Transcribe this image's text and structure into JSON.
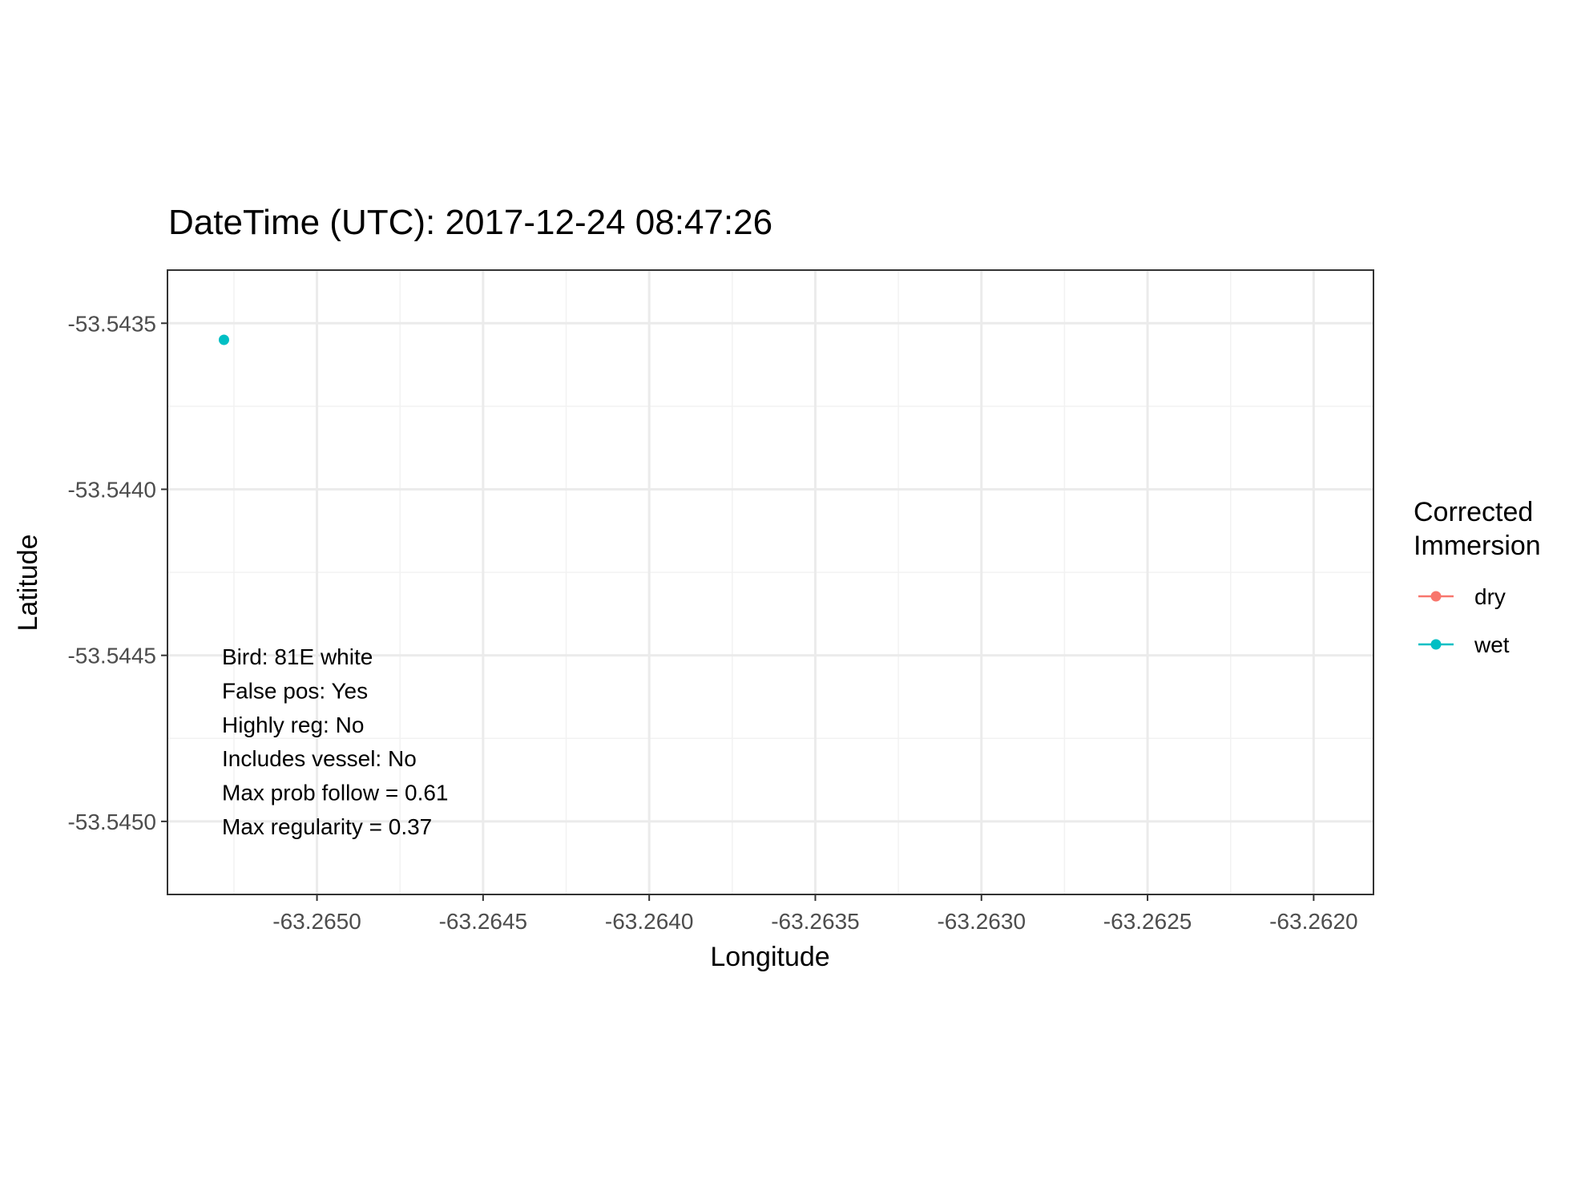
{
  "chart_data": {
    "type": "scatter",
    "title": "DateTime (UTC): 2017-12-24 08:47:26",
    "xlabel": "Longitude",
    "ylabel": "Latitude",
    "xlim": [
      -63.26545,
      -63.26182
    ],
    "ylim": [
      -53.54522,
      -53.54334
    ],
    "xticks": [
      -63.265,
      -63.2645,
      -63.264,
      -63.2635,
      -63.263,
      -63.2625,
      -63.262
    ],
    "xtick_labels": [
      "-63.2650",
      "-63.2645",
      "-63.2640",
      "-63.2635",
      "-63.2630",
      "-63.2625",
      "-63.2620"
    ],
    "yticks": [
      -53.5435,
      -53.544,
      -53.5445,
      -53.545
    ],
    "ytick_labels": [
      "-53.5435",
      "-53.5440",
      "-53.5445",
      "-53.5450"
    ],
    "grid": true,
    "legend": {
      "title_lines": [
        "Corrected",
        "Immersion"
      ],
      "placement": "right",
      "entries": [
        {
          "label": "dry",
          "color": "#F8766D"
        },
        {
          "label": "wet",
          "color": "#00BFC4"
        }
      ]
    },
    "points": [
      {
        "x": -63.26528,
        "y": -53.54355,
        "series": "wet"
      }
    ],
    "annotations": [
      "Bird: 81E white",
      "False pos: Yes",
      "Highly reg: No",
      "Includes vessel: No",
      "Max prob follow = 0.61",
      "Max regularity = 0.37"
    ]
  }
}
